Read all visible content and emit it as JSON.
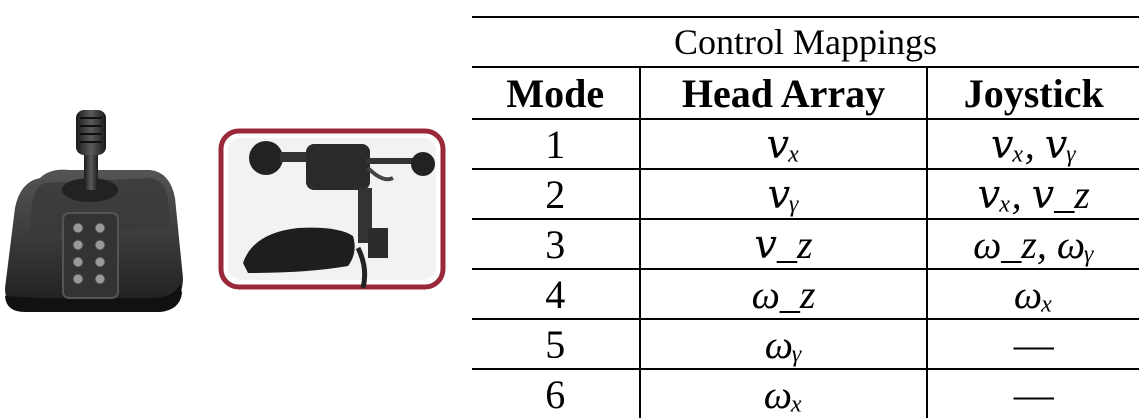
{
  "table": {
    "caption": "Control Mappings",
    "columns": [
      "Mode",
      "Head Array",
      "Joystick"
    ],
    "rows": [
      {
        "mode": "1",
        "head_array": "𝑣ₓ",
        "joystick": "𝑣ₓ, 𝑣ᵧ"
      },
      {
        "mode": "2",
        "head_array": "𝑣ᵧ",
        "joystick": "𝑣ₓ, 𝑣_z"
      },
      {
        "mode": "3",
        "head_array": "𝑣_z",
        "joystick": "ω_z, ωᵧ"
      },
      {
        "mode": "4",
        "head_array": "ω_z",
        "joystick": "ωₓ"
      },
      {
        "mode": "5",
        "head_array": "ωᵧ",
        "joystick": "—"
      },
      {
        "mode": "6",
        "head_array": "ωₓ",
        "joystick": "—"
      }
    ]
  },
  "images": {
    "joystick": "joystick-device",
    "head_array": "head-array-device"
  },
  "colors": {
    "frame_border": "#9a2a3a",
    "device_dark": "#2b2b2b"
  }
}
